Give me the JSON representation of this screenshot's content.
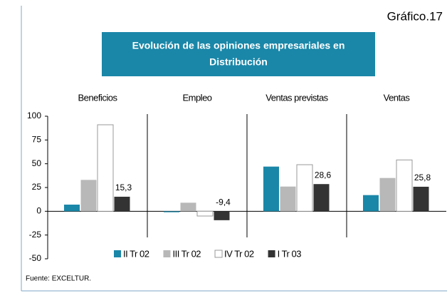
{
  "chart_data": {
    "type": "bar",
    "label": "Gráfico.17",
    "title": [
      "Evolución de las opiniones empresariales en",
      "Distribución"
    ],
    "categories": [
      "Beneficios",
      "Empleo",
      "Ventas previstas",
      "Ventas"
    ],
    "series": [
      {
        "name": "II Tr 02",
        "color": "#1a87a8",
        "values": [
          7,
          -1,
          47,
          17
        ]
      },
      {
        "name": "III Tr 02",
        "color": "#b8b8b8",
        "values": [
          33,
          9,
          26,
          35
        ]
      },
      {
        "name": "IV Tr 02",
        "color": "#ffffff",
        "values": [
          91,
          -5,
          49,
          54
        ]
      },
      {
        "name": "I Tr 03",
        "color": "#333333",
        "values": [
          15.3,
          -9.4,
          28.6,
          25.8
        ],
        "value_labels": [
          "15,3",
          "-9,4",
          "28,6",
          "25,8"
        ]
      }
    ],
    "ylim": [
      -50,
      100
    ],
    "yticks": [
      -50,
      -25,
      0,
      25,
      50,
      75,
      100
    ],
    "source": "Fuente: EXCELTUR."
  }
}
